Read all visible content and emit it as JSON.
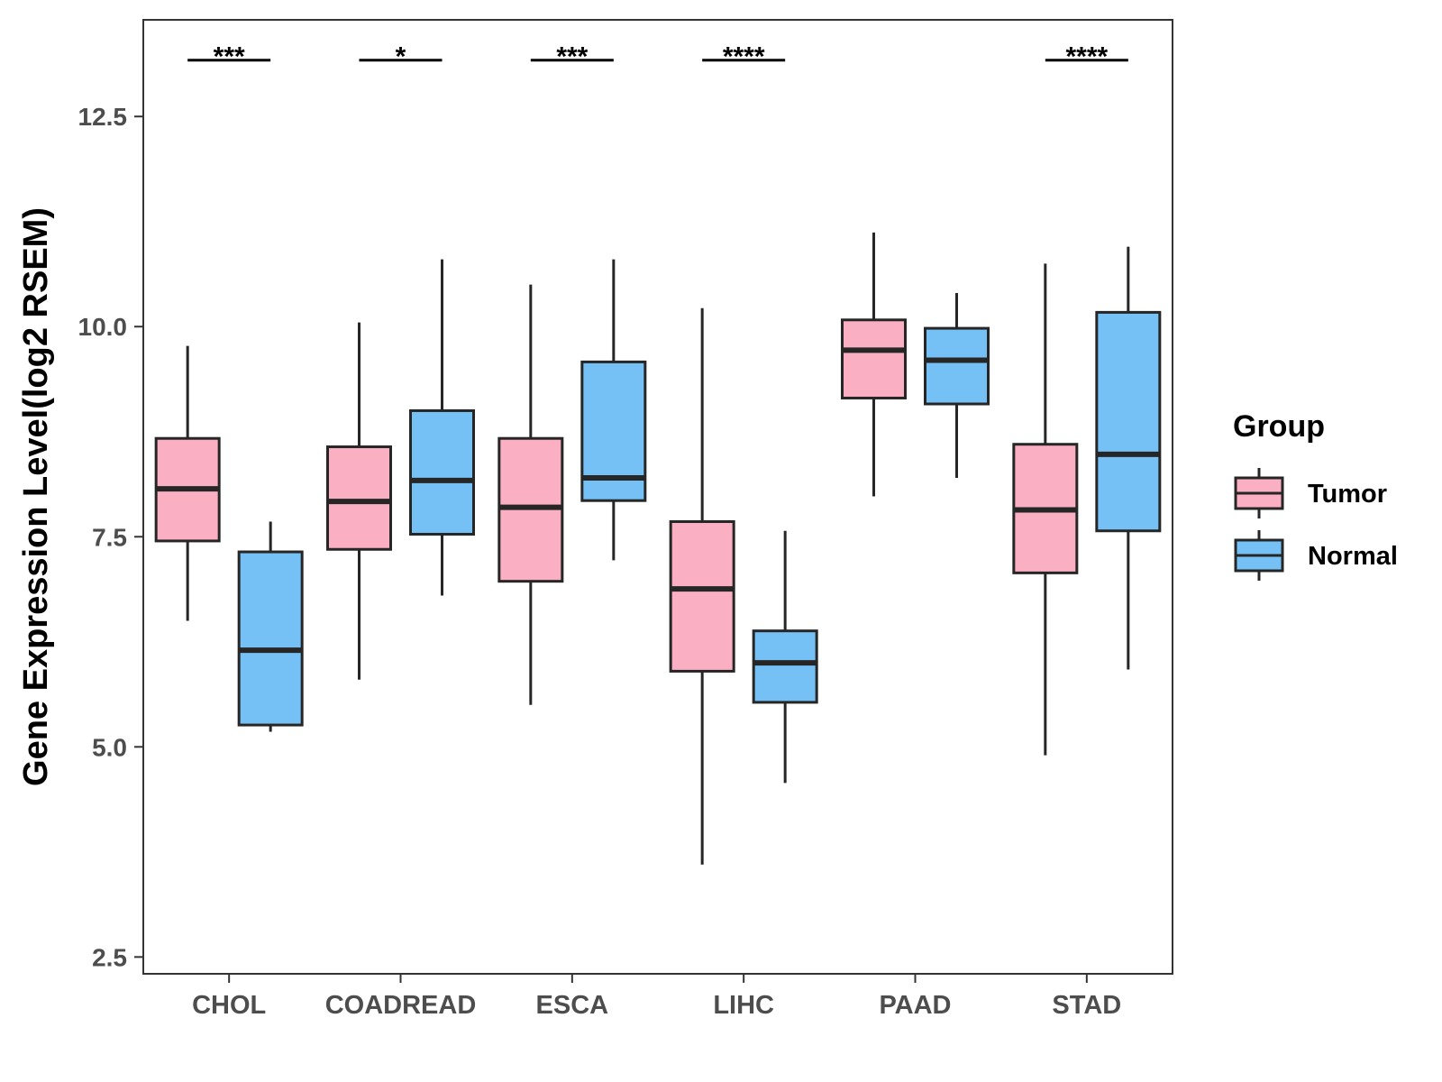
{
  "chart_data": {
    "type": "boxplot",
    "title": "",
    "xlabel": "",
    "ylabel": "Gene Expression Level(log2 RSEM)",
    "ylim": [
      2.3,
      13.65
    ],
    "yticks": [
      2.5,
      5.0,
      7.5,
      10.0,
      12.5
    ],
    "ytick_labels": [
      "2.5",
      "5.0",
      "7.5",
      "10.0",
      "12.5"
    ],
    "categories": [
      "CHOL",
      "COADREAD",
      "ESCA",
      "LIHC",
      "PAAD",
      "STAD"
    ],
    "series": [
      {
        "name": "Tumor",
        "color": "#FBAFC3",
        "boxes": [
          {
            "whisker_low": 6.5,
            "q1": 7.45,
            "median": 8.07,
            "q3": 8.67,
            "whisker_high": 9.77
          },
          {
            "whisker_low": 5.8,
            "q1": 7.35,
            "median": 7.92,
            "q3": 8.57,
            "whisker_high": 10.05
          },
          {
            "whisker_low": 5.5,
            "q1": 6.97,
            "median": 7.85,
            "q3": 8.67,
            "whisker_high": 10.5
          },
          {
            "whisker_low": 3.6,
            "q1": 5.9,
            "median": 6.88,
            "q3": 7.68,
            "whisker_high": 10.22
          },
          {
            "whisker_low": 7.98,
            "q1": 9.15,
            "median": 9.72,
            "q3": 10.08,
            "whisker_high": 11.12
          },
          {
            "whisker_low": 4.9,
            "q1": 7.07,
            "median": 7.82,
            "q3": 8.6,
            "whisker_high": 10.75
          }
        ]
      },
      {
        "name": "Normal",
        "color": "#75C1F6",
        "boxes": [
          {
            "whisker_low": 5.18,
            "q1": 5.26,
            "median": 6.15,
            "q3": 7.32,
            "whisker_high": 7.68
          },
          {
            "whisker_low": 6.8,
            "q1": 7.53,
            "median": 8.17,
            "q3": 9.0,
            "whisker_high": 10.8
          },
          {
            "whisker_low": 7.22,
            "q1": 7.93,
            "median": 8.2,
            "q3": 9.58,
            "whisker_high": 10.8
          },
          {
            "whisker_low": 4.57,
            "q1": 5.53,
            "median": 6.0,
            "q3": 6.38,
            "whisker_high": 7.57
          },
          {
            "whisker_low": 8.2,
            "q1": 9.08,
            "median": 9.6,
            "q3": 9.98,
            "whisker_high": 10.4
          },
          {
            "whisker_low": 5.92,
            "q1": 7.57,
            "median": 8.48,
            "q3": 10.17,
            "whisker_high": 10.95
          }
        ]
      }
    ],
    "significance": [
      {
        "category": "CHOL",
        "label": "***"
      },
      {
        "category": "COADREAD",
        "label": "*"
      },
      {
        "category": "ESCA",
        "label": "***"
      },
      {
        "category": "LIHC",
        "label": "****"
      },
      {
        "category": "PAAD",
        "label": ""
      },
      {
        "category": "STAD",
        "label": "****"
      }
    ],
    "significance_y": 13.17,
    "legend": {
      "title": "Group",
      "position": "right",
      "entries": [
        "Tumor",
        "Normal"
      ]
    },
    "grid": false
  },
  "colors": {
    "tumor": "#FBAFC3",
    "normal": "#75C1F6",
    "stroke": "#262626",
    "axis": "#333333"
  }
}
